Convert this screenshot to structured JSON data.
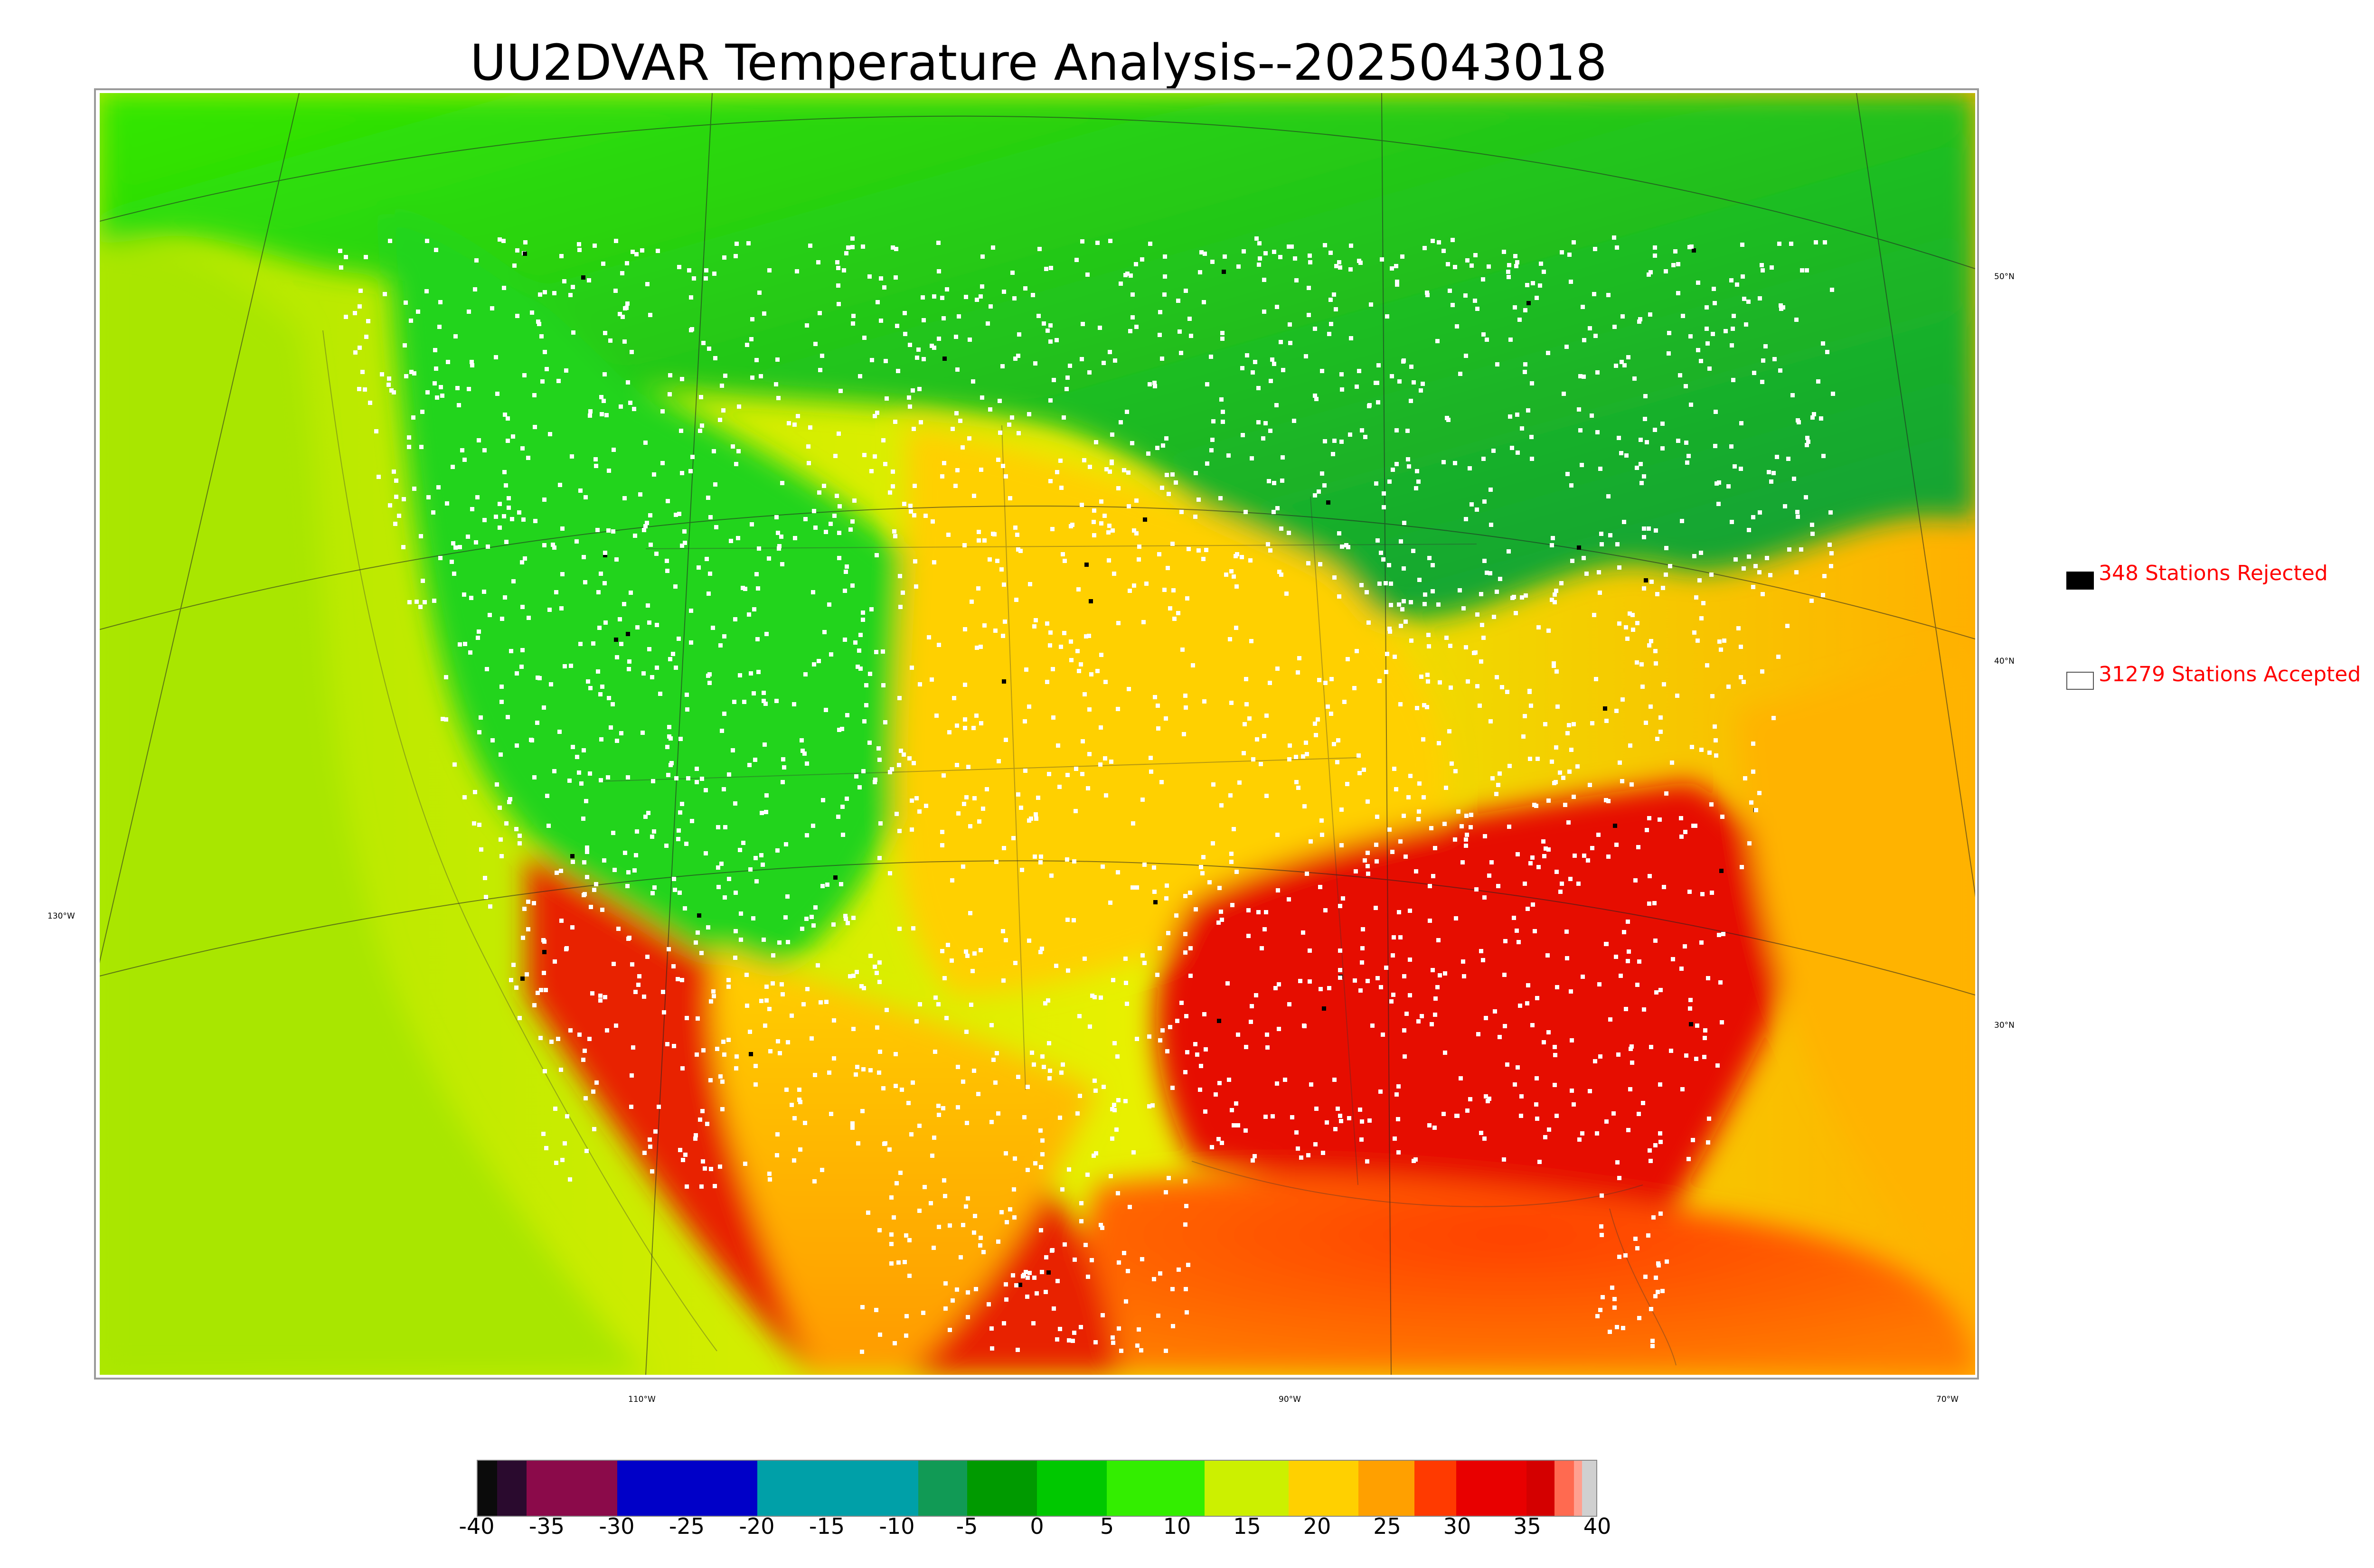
{
  "title": "UU2DVAR Temperature Analysis--2025043018",
  "graticule_labels": {
    "lat_50": "50°N",
    "lat_40": "40°N",
    "lat_30": "30°N",
    "lon_130": "130°W",
    "lon_110": "110°W",
    "lon_90": "90°W",
    "lon_70": "70°W"
  },
  "legend": {
    "rejected": {
      "count": 348,
      "label": "348 Stations Rejected",
      "color": "#000000"
    },
    "accepted": {
      "count": 31279,
      "label": "31279 Stations Accepted",
      "color": "#ffffff"
    }
  },
  "colorbar": {
    "min": -40,
    "max": 40,
    "tick_labels": [
      "-40",
      "-35",
      "-30",
      "-25",
      "-20",
      "-15",
      "-10",
      "-5",
      "0",
      "5",
      "10",
      "15",
      "20",
      "25",
      "30",
      "35",
      "40"
    ],
    "colors": [
      "#0b0b0b",
      "#2a0a2e",
      "#8b0a4a",
      "#8b0a4a",
      "#0000c8",
      "#0000c8",
      "#00a0a8",
      "#00a0a8",
      "#00a0a8",
      "#119a55",
      "#009a00",
      "#00c800",
      "#33ee00",
      "#ccf000",
      "#ffd000",
      "#ffa000",
      "#ff3a00",
      "#e80000",
      "#d40000",
      "#ff6a50",
      "#ffa090",
      "#d0d0d0"
    ],
    "color_stops": [
      -40,
      -38.6,
      -36.5,
      -33.5,
      -30,
      -25,
      -20,
      -15,
      -10,
      -8.5,
      -5,
      0,
      5,
      12,
      18,
      23,
      27,
      30,
      35,
      37,
      38.4,
      39,
      40
    ]
  },
  "map_colors": {
    "ocean_pacific": "#aee800",
    "ocean_atlantic": "#ffb000",
    "gulf": "#ff5000",
    "canada": "#22d41a",
    "rockies": "#22cc22",
    "plains": "#ffd000",
    "southeast": "#e60a00",
    "mexico": "#e82000"
  }
}
